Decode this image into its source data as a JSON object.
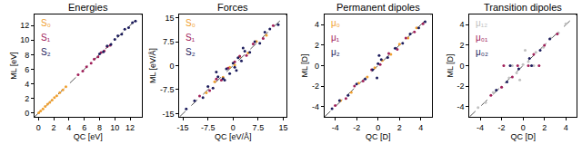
{
  "chart_data": [
    {
      "type": "scatter",
      "title": "Energies",
      "x_label": "QC [eV]",
      "y_label": "ML [eV]",
      "xlim": [
        -0.5,
        13.5
      ],
      "ylim": [
        -0.5,
        13.5
      ],
      "xticks": [
        0,
        2,
        4,
        6,
        8,
        10,
        12
      ],
      "yticks": [
        0,
        2,
        4,
        6,
        8,
        10,
        12
      ],
      "grid": false,
      "legend": "upper left",
      "series": [
        {
          "name": "S₀",
          "color": "#f0a030",
          "x": [
            0.05,
            0.3,
            0.6,
            0.9,
            1.2,
            1.5,
            1.8,
            2.1,
            2.4,
            2.8,
            3.2,
            3.6
          ],
          "values": [
            0.06,
            0.31,
            0.58,
            0.91,
            1.22,
            1.49,
            1.8,
            2.12,
            2.38,
            2.81,
            3.18,
            3.62
          ]
        },
        {
          "name": "S₁",
          "color": "#a0205a",
          "x": [
            5.2,
            5.8,
            6.3,
            6.9,
            7.3,
            7.8,
            8.2,
            8.6,
            9.0,
            9.4
          ],
          "values": [
            5.25,
            5.75,
            6.35,
            6.85,
            7.4,
            7.7,
            8.3,
            8.5,
            9.1,
            9.3
          ]
        },
        {
          "name": "S₂",
          "color": "#1c1c5c",
          "x": [
            8.0,
            8.5,
            9.0,
            9.5,
            10.0,
            10.4,
            10.9,
            11.3,
            11.8,
            12.3,
            12.7
          ],
          "values": [
            8.1,
            8.4,
            9.2,
            9.4,
            10.1,
            10.6,
            10.8,
            11.5,
            11.7,
            12.4,
            12.6
          ]
        }
      ]
    },
    {
      "type": "scatter",
      "title": "Forces",
      "x_label": "QC [eV/Å]",
      "y_label": "ML [eV/Å]",
      "xlim": [
        -16,
        16
      ],
      "ylim": [
        -16,
        16
      ],
      "xticks": [
        -15,
        -7.5,
        0,
        7.5,
        15
      ],
      "yticks": [
        -15,
        -7.5,
        0,
        7.5,
        15
      ],
      "grid": false,
      "legend": "upper left",
      "series": [
        {
          "name": "S₀",
          "color": "#f0a030",
          "x": [
            -8,
            -5.5,
            -3,
            -1,
            0.5,
            2,
            4.5,
            7,
            10
          ],
          "values": [
            -8.5,
            -5,
            -3.6,
            -0.5,
            0.2,
            2.8,
            4,
            7.6,
            9.5
          ]
        },
        {
          "name": "S₁",
          "color": "#a0205a",
          "x": [
            -10,
            -7,
            -5,
            -3.5,
            -1.5,
            0.5,
            2,
            4,
            6,
            9,
            12
          ],
          "values": [
            -9.5,
            -7.8,
            -4.2,
            -4.5,
            -0.8,
            1.2,
            3,
            3.2,
            6.8,
            8.5,
            12.5
          ]
        },
        {
          "name": "S₂",
          "color": "#1c1c5c",
          "x": [
            -14,
            -11.5,
            -9,
            -7.5,
            -6,
            -4.5,
            -3,
            -2,
            -1,
            0,
            0.5,
            1.5,
            2.5,
            3.5,
            5,
            6.5,
            8,
            9.5,
            11,
            13.5,
            -5,
            3,
            -2.5,
            1
          ],
          "values": [
            -13.5,
            -11,
            -10,
            -6.5,
            -7,
            -3.5,
            -4,
            -1,
            -2.5,
            0.8,
            -0.5,
            2.5,
            1.5,
            4.5,
            4.2,
            7.5,
            7,
            10.5,
            11.5,
            12.8,
            -2,
            5.5,
            -4.5,
            -1.5
          ]
        }
      ]
    },
    {
      "type": "scatter",
      "title": "Permanent dipoles",
      "x_label": "QC [D]",
      "y_label": "ML [D]",
      "xlim": [
        -5,
        5
      ],
      "ylim": [
        -5,
        5
      ],
      "xticks": [
        -4,
        -2,
        0,
        2,
        4
      ],
      "yticks": [
        -4,
        -2,
        0,
        2,
        4
      ],
      "grid": false,
      "legend": "upper left",
      "series": [
        {
          "name": "μ₀",
          "color": "#f0a030",
          "x": [
            -3.5,
            -2.5,
            -1.8,
            -1,
            -0.3,
            0.4,
            1.2,
            2,
            2.8,
            3.6
          ],
          "values": [
            -3.4,
            -2.6,
            -1.7,
            -1.1,
            -0.2,
            0.5,
            1.1,
            2.1,
            2.7,
            3.7
          ]
        },
        {
          "name": "μ₁",
          "color": "#a0205a",
          "x": [
            -4,
            -3,
            -2.2,
            -1.4,
            -0.6,
            0.2,
            1,
            1.8,
            2.6,
            3.4,
            4.2
          ],
          "values": [
            -3.9,
            -3.2,
            -2.0,
            -1.5,
            -0.4,
            0.1,
            1.2,
            1.6,
            2.7,
            3.3,
            4.1
          ]
        },
        {
          "name": "μ₂",
          "color": "#1c1c5c",
          "x": [
            -4.3,
            -3.6,
            -2.8,
            -2,
            -1.2,
            -0.5,
            0,
            0.3,
            0.9,
            1.6,
            2.3,
            3,
            3.8,
            4.4,
            -0.1,
            0.1
          ],
          "values": [
            -4.2,
            -3.4,
            -2.9,
            -1.8,
            -1.3,
            -0.4,
            0.2,
            0.6,
            0.8,
            1.7,
            2.2,
            3.1,
            3.7,
            4.3,
            -1.2,
            1.0
          ]
        }
      ]
    },
    {
      "type": "scatter",
      "title": "Transition dipoles",
      "x_label": "QC [D]",
      "y_label": "ML [D]",
      "xlim": [
        -5,
        5
      ],
      "ylim": [
        -5,
        5
      ],
      "xticks": [
        -4,
        -2,
        0,
        2,
        4
      ],
      "yticks": [
        -4,
        -2,
        0,
        2,
        4
      ],
      "grid": false,
      "legend": "upper left",
      "series": [
        {
          "name": "μ₁₂",
          "color": "#c0c0c0",
          "x": [
            -4.2,
            -3.5,
            -2.8,
            -2,
            -1.3,
            -0.6,
            0,
            0.5,
            1.2,
            1.9,
            2.6,
            3.3,
            4,
            -1,
            1,
            0.2,
            -0.3
          ],
          "values": [
            -4.1,
            -3.6,
            -2.6,
            -2.1,
            -1.2,
            -0.7,
            0.1,
            0.4,
            1.3,
            1.8,
            2.7,
            3.2,
            4.1,
            0,
            0,
            1.5,
            -1.4
          ]
        },
        {
          "name": "μ₀₁",
          "color": "#a0205a",
          "x": [
            -3,
            -2,
            -1,
            -0.5,
            0.5,
            1,
            2,
            3.2,
            1.5,
            -1.8
          ],
          "values": [
            -2.9,
            -2.1,
            -1.1,
            0,
            0,
            1.1,
            2.0,
            3.1,
            0,
            0
          ]
        },
        {
          "name": "μ₀₂",
          "color": "#1c1c5c",
          "x": [
            -2.5,
            -1.5,
            -0.4,
            0.6,
            1.6,
            2.5,
            0.8,
            -1.2
          ],
          "values": [
            -2.4,
            -1.6,
            -0.3,
            0.7,
            1.5,
            2.6,
            0,
            0
          ]
        }
      ]
    }
  ]
}
